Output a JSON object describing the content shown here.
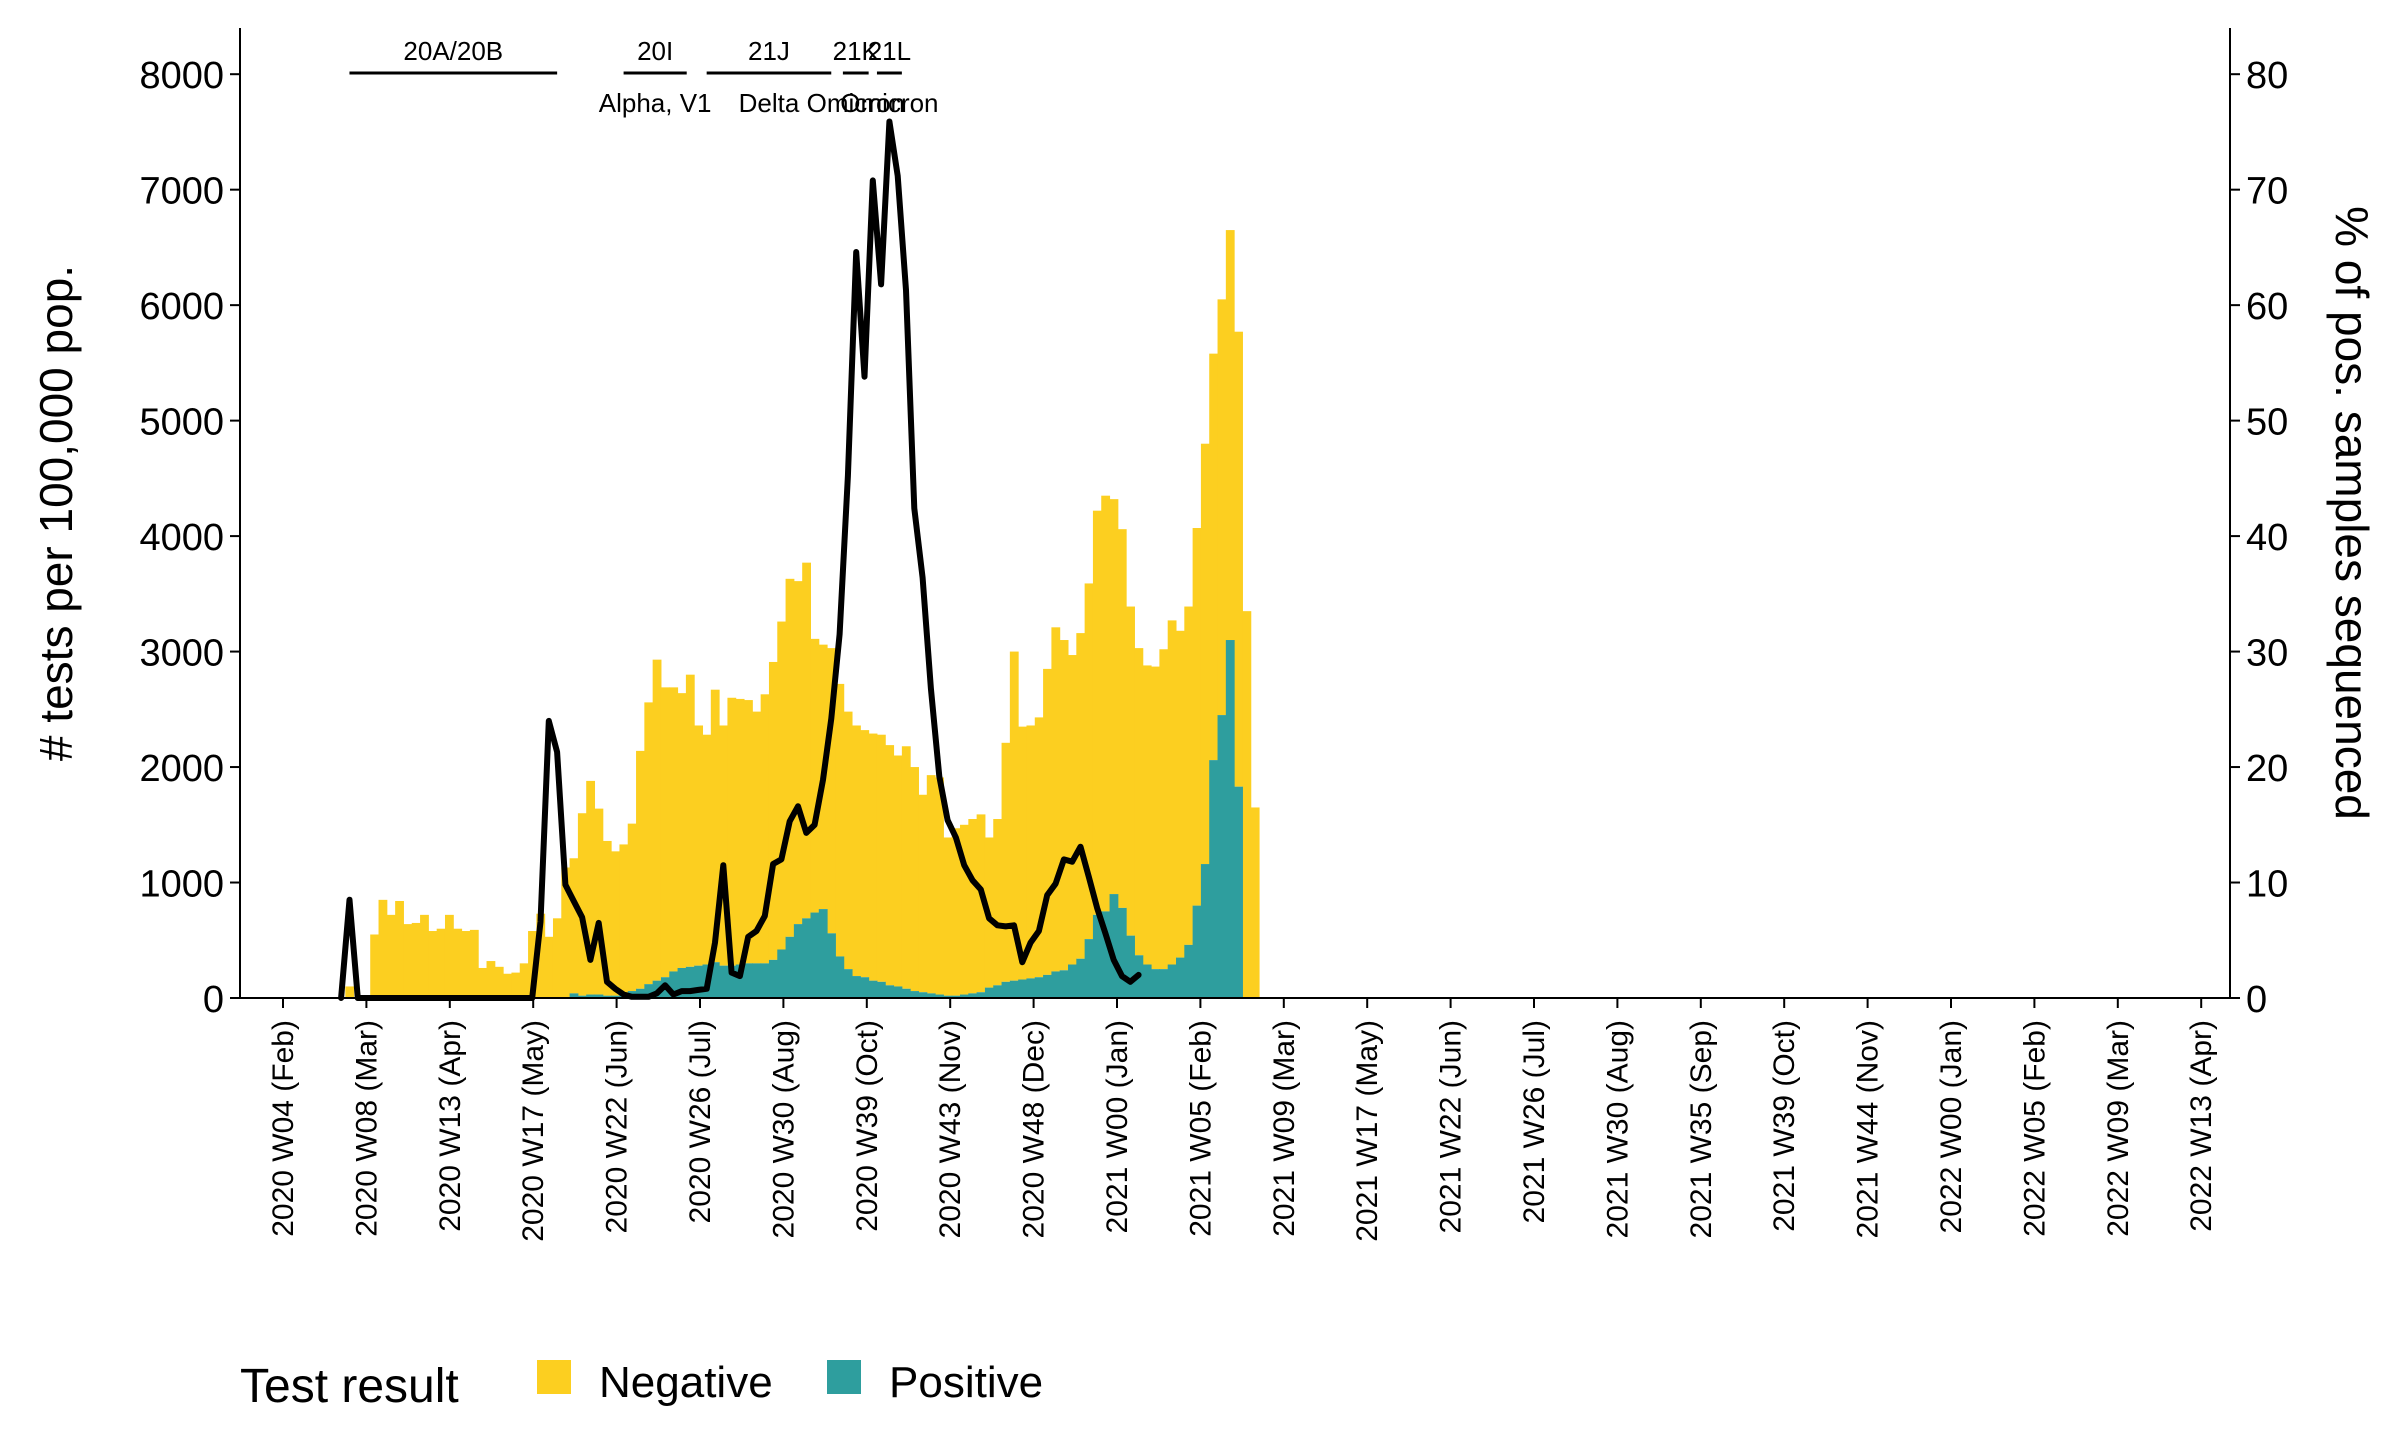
{
  "chart_data": {
    "type": "bar",
    "stacked": true,
    "grid": false,
    "legend_placement": "bottom-left",
    "ylabel": "# tests per 100,000 pop.",
    "ylabel_right": "% of pos. samples sequenced",
    "ylim": [
      0,
      8400
    ],
    "ylim_right": [
      0,
      84
    ],
    "yticks": [
      "0",
      "1000",
      "2000",
      "3000",
      "4000",
      "5000",
      "6000",
      "7000",
      "8000"
    ],
    "yticks_right": [
      "0",
      "10",
      "20",
      "30",
      "40",
      "50",
      "60",
      "70",
      "80"
    ],
    "xticks": [
      "2020 W04 (Feb)",
      "2020 W08 (Mar)",
      "2020 W13 (Apr)",
      "2020 W17 (May)",
      "2020 W22 (Jun)",
      "2020 W26 (Jul)",
      "2020 W30 (Aug)",
      "2020 W39 (Oct)",
      "2020 W43 (Nov)",
      "2020 W48 (Dec)",
      "2021 W00 (Jan)",
      "2021 W05 (Feb)",
      "2021 W09 (Mar)",
      "2021 W17 (May)",
      "2021 W22 (Jun)",
      "2021 W26 (Jul)",
      "2021 W30 (Aug)",
      "2021 W35 (Sep)",
      "2021 W39 (Oct)",
      "2021 W44 (Nov)",
      "2022 W00 (Jan)",
      "2022 W05 (Feb)",
      "2022 W09 (Mar)",
      "2022 W13 (Apr)"
    ],
    "legend": {
      "title": "Test result",
      "items": [
        {
          "label": "Negative",
          "color": "#fccf20"
        },
        {
          "label": "Positive",
          "color": "#2e9e9e"
        }
      ]
    },
    "colors": {
      "negative": "#fccf20",
      "positive": "#2e9e9e",
      "line": "#000000"
    },
    "x_start_index": 7,
    "series": [
      {
        "name": "Negative",
        "values": [
          0,
          100,
          0,
          0,
          550,
          850,
          720,
          840,
          640,
          650,
          720,
          580,
          600,
          720,
          600,
          580,
          590,
          260,
          320,
          270,
          210,
          220,
          300,
          580,
          730,
          530,
          690,
          1130,
          1170,
          1580,
          1850,
          1610,
          1340,
          1250,
          1290,
          1450,
          2060,
          2440,
          2780,
          2510,
          2460,
          2380,
          2530,
          2080,
          1990,
          2360,
          2080,
          2320,
          2300,
          2280,
          2180,
          2330,
          2580,
          2840,
          3100,
          2970,
          3080,
          2370,
          2290,
          2470,
          2360,
          2230,
          2170,
          2140,
          2140,
          2140,
          2080,
          2000,
          2100,
          1940,
          1710,
          1890,
          1880,
          1370,
          1450,
          1470,
          1510,
          1540,
          1300,
          1440,
          2070,
          2850,
          2190,
          2190,
          2250,
          2650,
          2980,
          2860,
          2680,
          2820,
          3080,
          3500,
          3600,
          3420,
          3280,
          2850,
          2660,
          2590,
          2620,
          2770,
          2980,
          2830,
          2930,
          3270,
          3640,
          3520,
          3600,
          3550,
          3940,
          3350,
          1650
        ]
      },
      {
        "name": "Positive",
        "values": [
          0,
          0,
          0,
          0,
          0,
          0,
          0,
          0,
          0,
          0,
          0,
          0,
          0,
          0,
          0,
          0,
          0,
          0,
          0,
          0,
          0,
          0,
          0,
          0,
          0,
          0,
          0,
          0,
          40,
          20,
          30,
          30,
          20,
          20,
          40,
          60,
          80,
          120,
          150,
          180,
          230,
          260,
          270,
          280,
          290,
          310,
          280,
          280,
          290,
          300,
          300,
          300,
          330,
          420,
          530,
          640,
          690,
          740,
          770,
          560,
          360,
          250,
          190,
          180,
          150,
          140,
          110,
          100,
          80,
          60,
          50,
          40,
          30,
          20,
          20,
          30,
          40,
          50,
          90,
          110,
          140,
          150,
          160,
          170,
          180,
          200,
          230,
          240,
          290,
          340,
          510,
          720,
          750,
          900,
          780,
          540,
          370,
          290,
          250,
          250,
          290,
          350,
          460,
          800,
          1160,
          2060,
          2450,
          3100,
          1830,
          0,
          0
        ]
      }
    ],
    "line_series": {
      "name": "",
      "points": [
        [
          7,
          0
        ],
        [
          8,
          8.5
        ],
        [
          9,
          0
        ],
        [
          10,
          0
        ],
        [
          13,
          0
        ],
        [
          18,
          0
        ],
        [
          25,
          0
        ],
        [
          29,
          0
        ],
        [
          30,
          0
        ],
        [
          31,
          6.6
        ],
        [
          32,
          24
        ],
        [
          33,
          21.3
        ],
        [
          34,
          9.8
        ],
        [
          35,
          8.4
        ],
        [
          36,
          7
        ],
        [
          37,
          3.3
        ],
        [
          38,
          6.5
        ],
        [
          39,
          1.4
        ],
        [
          40,
          0.8
        ],
        [
          41,
          0.3
        ],
        [
          42,
          0.1
        ],
        [
          43,
          0.1
        ],
        [
          44,
          0.1
        ],
        [
          45,
          0.4
        ],
        [
          46,
          1.1
        ],
        [
          47,
          0.3
        ],
        [
          48,
          0.6
        ],
        [
          49,
          0.6
        ],
        [
          50,
          0.7
        ],
        [
          51,
          0.8
        ],
        [
          52,
          4.8
        ],
        [
          53,
          11.5
        ],
        [
          54,
          2.2
        ],
        [
          55,
          1.9
        ],
        [
          56,
          5.3
        ],
        [
          57,
          5.8
        ],
        [
          58,
          7.1
        ],
        [
          59,
          11.6
        ],
        [
          60,
          12
        ],
        [
          61,
          15.3
        ],
        [
          62,
          16.6
        ],
        [
          63,
          14.3
        ],
        [
          64,
          15
        ],
        [
          65,
          18.9
        ],
        [
          66,
          24.2
        ],
        [
          67,
          31.5
        ],
        [
          68,
          45.2
        ],
        [
          69,
          64.6
        ],
        [
          70,
          53.8
        ],
        [
          71,
          70.8
        ],
        [
          72,
          61.8
        ],
        [
          73,
          75.9
        ],
        [
          74,
          71.2
        ],
        [
          75,
          61.3
        ],
        [
          76,
          42.4
        ],
        [
          77,
          36.4
        ],
        [
          78,
          26.8
        ],
        [
          79,
          19.2
        ],
        [
          80,
          15.4
        ],
        [
          81,
          13.9
        ],
        [
          82,
          11.5
        ],
        [
          83,
          10.2
        ],
        [
          84,
          9.4
        ],
        [
          85,
          6.9
        ],
        [
          86,
          6.3
        ],
        [
          87,
          6.2
        ],
        [
          88,
          6.3
        ],
        [
          89,
          3.1
        ],
        [
          90,
          4.8
        ],
        [
          91,
          5.8
        ],
        [
          92,
          8.9
        ],
        [
          93,
          9.9
        ],
        [
          94,
          12
        ],
        [
          95,
          11.8
        ],
        [
          96,
          13.1
        ],
        [
          97,
          10.5
        ],
        [
          98,
          7.8
        ],
        [
          99,
          5.6
        ],
        [
          100,
          3.3
        ],
        [
          101,
          1.9
        ],
        [
          102,
          1.4
        ],
        [
          103,
          2
        ]
      ]
    },
    "annotations": [
      {
        "clade": "20A/20B",
        "variant": "",
        "from": 8,
        "to": 33
      },
      {
        "clade": "20I",
        "variant": "Alpha, V1",
        "from": 41,
        "to": 48.6
      },
      {
        "clade": "21J",
        "variant": "Delta",
        "from": 51,
        "to": 66
      },
      {
        "clade": "21K",
        "variant": "Omicron",
        "from": 67.4,
        "to": 70.5
      },
      {
        "clade": "21L",
        "variant": "Omicron",
        "from": 71.5,
        "to": 74.5
      }
    ]
  }
}
